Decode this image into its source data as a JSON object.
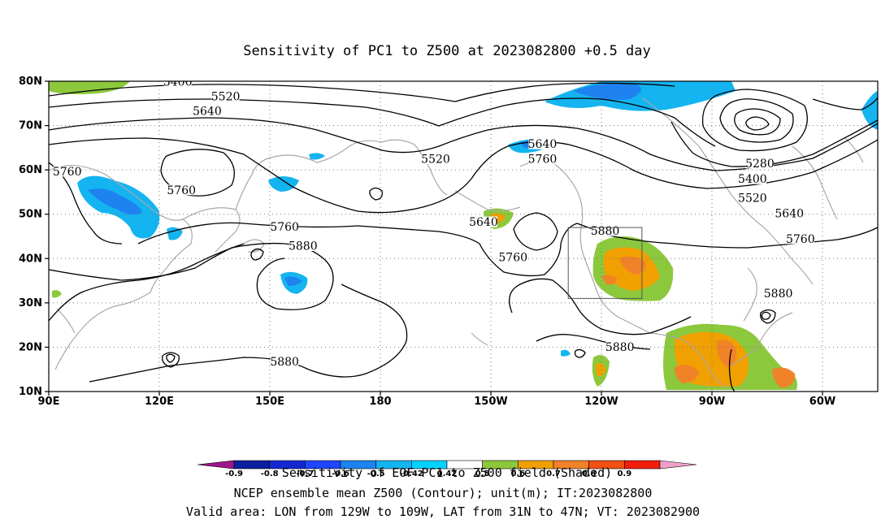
{
  "title": "Sensitivity of PC1 to Z500 at 2023082800 +0.5 day",
  "lat_ticks": [
    "80N",
    "70N",
    "60N",
    "50N",
    "40N",
    "30N",
    "20N",
    "10N"
  ],
  "lon_ticks": [
    "90E",
    "120E",
    "150E",
    "180",
    "150W",
    "120W",
    "90W",
    "60W"
  ],
  "contour_labels": [
    {
      "text": "5400",
      "lon": 125,
      "lat": 79.7
    },
    {
      "text": "5520",
      "lon": 138,
      "lat": 76.4
    },
    {
      "text": "5640",
      "lon": 133,
      "lat": 73.1
    },
    {
      "text": "5760",
      "lon": 95,
      "lat": 59.5
    },
    {
      "text": "5760",
      "lon": 126,
      "lat": 55.3
    },
    {
      "text": "5520",
      "lon": 195,
      "lat": 62.3
    },
    {
      "text": "5640",
      "lon": 208,
      "lat": 48.1
    },
    {
      "text": "5760",
      "lon": 154,
      "lat": 47.0
    },
    {
      "text": "5880",
      "lon": 159,
      "lat": 42.7
    },
    {
      "text": "5880",
      "lon": 154,
      "lat": 16.6
    },
    {
      "text": "5640",
      "lon": 224,
      "lat": 65.7
    },
    {
      "text": "5760",
      "lon": 224,
      "lat": 62.3
    },
    {
      "text": "5760",
      "lon": 216,
      "lat": 40.1
    },
    {
      "text": "5880",
      "lon": 241,
      "lat": 46.1
    },
    {
      "text": "5880",
      "lon": 245,
      "lat": 19.9
    },
    {
      "text": "5280",
      "lon": 283,
      "lat": 61.3
    },
    {
      "text": "5400",
      "lon": 281,
      "lat": 57.8
    },
    {
      "text": "5520",
      "lon": 281,
      "lat": 53.5
    },
    {
      "text": "5640",
      "lon": 291,
      "lat": 50.0
    },
    {
      "text": "5760",
      "lon": 294,
      "lat": 44.3
    },
    {
      "text": "5880",
      "lon": 288,
      "lat": 32.0
    }
  ],
  "valid_box": {
    "lon_min": -129,
    "lon_max": -109,
    "lat_min": 31,
    "lat_max": 47
  },
  "colorbar": {
    "levels": [
      "-0.9",
      "-0.8",
      "-0.7",
      "-0.6",
      "-0.5",
      "-0.42",
      "0.42",
      "0.5",
      "0.6",
      "0.7",
      "0.8",
      "0.9"
    ],
    "colors": [
      "#a0148c",
      "#0a1ea0",
      "#1428d2",
      "#1e46ff",
      "#1e82f0",
      "#14b4f0",
      "#00d2ff",
      "#ffffff",
      "#8cc83c",
      "#f0a000",
      "#f08228",
      "#f05014",
      "#f01e0a",
      "#f0a0c8"
    ]
  },
  "footer": {
    "line1": "Sensitivity of EOF PC1 to Z500 field (Shaded)",
    "line2": "NCEP ensemble mean Z500 (Contour); unit(m); IT:2023082800",
    "line3": "Valid area: LON from 129W to 109W, LAT from 31N to 47N; VT: 2023082900"
  }
}
